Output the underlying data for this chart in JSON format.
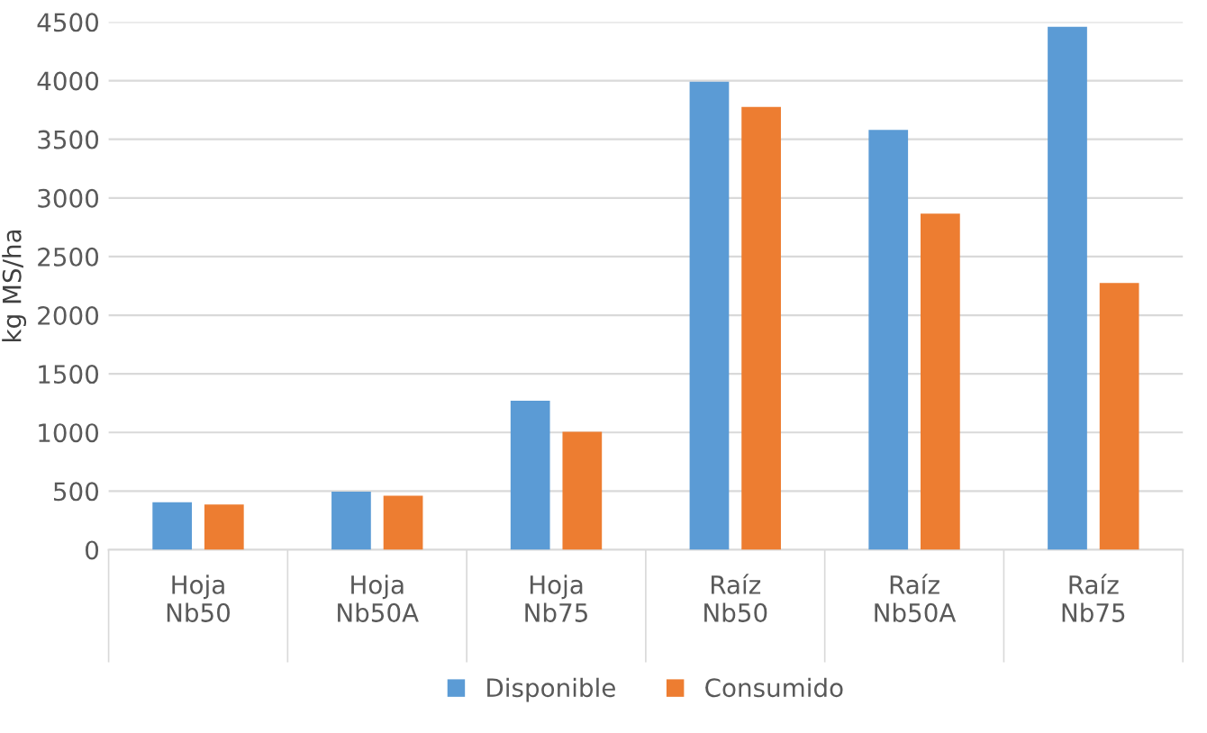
{
  "chart_data": {
    "type": "bar",
    "ylabel": "kg MS/ha",
    "categories": [
      "Hoja\nNb50",
      "Hoja\nNb50A",
      "Hoja\nNb75",
      "Raíz\nNb50",
      "Raíz\nNb50A",
      "Raíz\nNb75"
    ],
    "series": [
      {
        "name": "Disponible",
        "color": "#5b9bd5",
        "values": [
          405,
          495,
          1270,
          3990,
          3580,
          4460
        ]
      },
      {
        "name": "Consumido",
        "color": "#ed7d31",
        "values": [
          385,
          460,
          1005,
          3775,
          2865,
          2275
        ]
      }
    ],
    "ylim": [
      0,
      4500
    ],
    "yticks": [
      0,
      500,
      1000,
      1500,
      2000,
      2500,
      3000,
      3500,
      4000,
      4500
    ],
    "grid": "y",
    "legend": "bottom"
  }
}
